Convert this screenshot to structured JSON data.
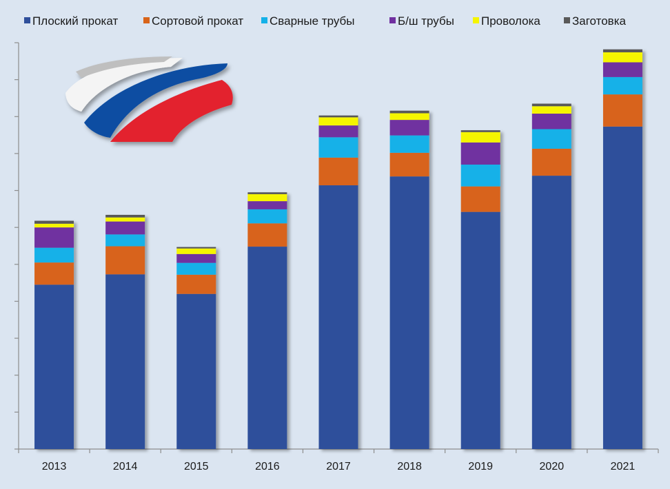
{
  "chart_data": {
    "type": "bar",
    "stacked": true,
    "categories": [
      "2013",
      "2014",
      "2015",
      "2016",
      "2017",
      "2018",
      "2019",
      "2020",
      "2021"
    ],
    "ylim": [
      0,
      11
    ],
    "grid": false,
    "legend": "top",
    "series": [
      {
        "name": "Плоский прокат",
        "color": "#2f4f9b",
        "values": [
          4.45,
          4.73,
          4.2,
          5.48,
          7.14,
          7.38,
          6.42,
          7.4,
          8.73
        ]
      },
      {
        "name": "Сортовой прокат",
        "color": "#d8641a",
        "values": [
          0.6,
          0.76,
          0.52,
          0.63,
          0.75,
          0.64,
          0.69,
          0.73,
          0.87
        ]
      },
      {
        "name": "Сварные трубы",
        "color": "#14b1e8",
        "values": [
          0.4,
          0.32,
          0.32,
          0.38,
          0.55,
          0.47,
          0.59,
          0.53,
          0.47
        ]
      },
      {
        "name": "Б/ш трубы",
        "color": "#7030a0",
        "values": [
          0.55,
          0.35,
          0.24,
          0.22,
          0.32,
          0.42,
          0.6,
          0.42,
          0.4
        ]
      },
      {
        "name": "Проволока",
        "color": "#f5f500",
        "values": [
          0.1,
          0.11,
          0.15,
          0.19,
          0.22,
          0.18,
          0.28,
          0.2,
          0.27
        ]
      },
      {
        "name": "Заготовка",
        "color": "#595959",
        "values": [
          0.08,
          0.07,
          0.04,
          0.05,
          0.05,
          0.07,
          0.05,
          0.07,
          0.08
        ]
      }
    ]
  },
  "logo": {
    "name": "russia-ribbon-logo",
    "colors": [
      "#ffffff",
      "#0c4ea2",
      "#e3222e"
    ]
  }
}
